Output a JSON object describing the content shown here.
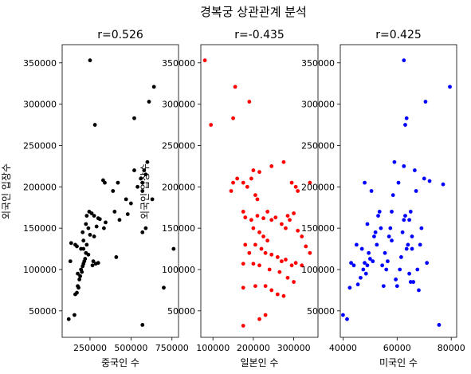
{
  "figure": {
    "suptitle": "경복궁 상관관계 분석"
  },
  "chart_data": [
    {
      "type": "scatter",
      "title": "r=0.526",
      "xlabel": "중국인 수",
      "ylabel": "외국인 입장수",
      "color": "#000000",
      "xlim": [
        80000,
        790000
      ],
      "ylim": [
        18000,
        372000
      ],
      "xticks": [
        250000,
        500000,
        750000
      ],
      "xtick_labels": [
        "250000",
        "500000",
        "750000"
      ],
      "yticks": [
        50000,
        100000,
        150000,
        200000,
        250000,
        300000,
        350000
      ],
      "ytick_labels": [
        "50000",
        "100000",
        "150000",
        "200000",
        "250000",
        "300000",
        "350000"
      ],
      "points": [
        [
          120000,
          40000
        ],
        [
          155000,
          45000
        ],
        [
          170000,
          72000
        ],
        [
          160000,
          70000
        ],
        [
          175000,
          80000
        ],
        [
          180000,
          78000
        ],
        [
          185000,
          88000
        ],
        [
          190000,
          92000
        ],
        [
          175000,
          95000
        ],
        [
          200000,
          97000
        ],
        [
          195000,
          100000
        ],
        [
          205000,
          104000
        ],
        [
          210000,
          107000
        ],
        [
          215000,
          110000
        ],
        [
          220000,
          113000
        ],
        [
          130000,
          110000
        ],
        [
          195000,
          125000
        ],
        [
          210000,
          125000
        ],
        [
          160000,
          130000
        ],
        [
          170000,
          128000
        ],
        [
          135000,
          132000
        ],
        [
          225000,
          120000
        ],
        [
          240000,
          118000
        ],
        [
          265000,
          105000
        ],
        [
          285000,
          107000
        ],
        [
          300000,
          108000
        ],
        [
          270000,
          110000
        ],
        [
          250000,
          142000
        ],
        [
          275000,
          140000
        ],
        [
          240000,
          150000
        ],
        [
          230000,
          130000
        ],
        [
          210000,
          135000
        ],
        [
          205000,
          145000
        ],
        [
          225000,
          155000
        ],
        [
          230000,
          165000
        ],
        [
          245000,
          170000
        ],
        [
          260000,
          168000
        ],
        [
          275000,
          165000
        ],
        [
          300000,
          162000
        ],
        [
          310000,
          161000
        ],
        [
          290000,
          152000
        ],
        [
          335000,
          150000
        ],
        [
          345000,
          157000
        ],
        [
          400000,
          170000
        ],
        [
          430000,
          160000
        ],
        [
          480000,
          167000
        ],
        [
          500000,
          180000
        ],
        [
          470000,
          185000
        ],
        [
          390000,
          195000
        ],
        [
          420000,
          205000
        ],
        [
          340000,
          205000
        ],
        [
          330000,
          208000
        ],
        [
          280000,
          275000
        ],
        [
          250000,
          353000
        ],
        [
          520000,
          220000
        ],
        [
          520000,
          283000
        ],
        [
          540000,
          200000
        ],
        [
          560000,
          210000
        ],
        [
          570000,
          205000
        ],
        [
          570000,
          195000
        ],
        [
          580000,
          220000
        ],
        [
          590000,
          215000
        ],
        [
          600000,
          230000
        ],
        [
          610000,
          303000
        ],
        [
          640000,
          321000
        ],
        [
          630000,
          185000
        ],
        [
          570000,
          145000
        ],
        [
          590000,
          150000
        ],
        [
          410000,
          115000
        ],
        [
          760000,
          125000
        ],
        [
          700000,
          78000
        ],
        [
          570000,
          33000
        ]
      ]
    },
    {
      "type": "scatter",
      "title": "r=-0.435",
      "xlabel": "일본인 수",
      "ylabel": "외국인 입장수",
      "color": "#ff0000",
      "xlim": [
        70000,
        360000
      ],
      "ylim": [
        18000,
        372000
      ],
      "xticks": [
        100000,
        200000,
        300000
      ],
      "xtick_labels": [
        "100000",
        "200000",
        "300000"
      ],
      "yticks": [
        50000,
        100000,
        150000,
        200000,
        250000,
        300000,
        350000
      ],
      "ytick_labels": [
        "50000",
        "100000",
        "150000",
        "200000",
        "250000",
        "300000",
        "350000"
      ],
      "points": [
        [
          80000,
          353000
        ],
        [
          95000,
          275000
        ],
        [
          155000,
          321000
        ],
        [
          150000,
          283000
        ],
        [
          190000,
          303000
        ],
        [
          145000,
          195000
        ],
        [
          150000,
          205000
        ],
        [
          160000,
          210000
        ],
        [
          175000,
          205000
        ],
        [
          185000,
          200000
        ],
        [
          195000,
          210000
        ],
        [
          200000,
          220000
        ],
        [
          215000,
          218000
        ],
        [
          205000,
          190000
        ],
        [
          210000,
          185000
        ],
        [
          245000,
          225000
        ],
        [
          275000,
          230000
        ],
        [
          295000,
          205000
        ],
        [
          305000,
          200000
        ],
        [
          310000,
          195000
        ],
        [
          175000,
          170000
        ],
        [
          180000,
          163000
        ],
        [
          195000,
          160000
        ],
        [
          210000,
          165000
        ],
        [
          225000,
          162000
        ],
        [
          235000,
          170000
        ],
        [
          245000,
          160000
        ],
        [
          255000,
          163000
        ],
        [
          270000,
          155000
        ],
        [
          280000,
          150000
        ],
        [
          285000,
          165000
        ],
        [
          290000,
          160000
        ],
        [
          300000,
          168000
        ],
        [
          310000,
          147000
        ],
        [
          320000,
          140000
        ],
        [
          330000,
          128000
        ],
        [
          340000,
          120000
        ],
        [
          200000,
          150000
        ],
        [
          215000,
          145000
        ],
        [
          225000,
          140000
        ],
        [
          235000,
          135000
        ],
        [
          205000,
          130000
        ],
        [
          180000,
          130000
        ],
        [
          190000,
          120000
        ],
        [
          220000,
          125000
        ],
        [
          230000,
          120000
        ],
        [
          245000,
          118000
        ],
        [
          260000,
          115000
        ],
        [
          270000,
          110000
        ],
        [
          280000,
          112000
        ],
        [
          295000,
          105000
        ],
        [
          305000,
          108000
        ],
        [
          320000,
          105000
        ],
        [
          175000,
          107000
        ],
        [
          200000,
          107000
        ],
        [
          215000,
          105000
        ],
        [
          240000,
          100000
        ],
        [
          265000,
          97000
        ],
        [
          285000,
          90000
        ],
        [
          300000,
          85000
        ],
        [
          175000,
          78000
        ],
        [
          205000,
          80000
        ],
        [
          230000,
          80000
        ],
        [
          245000,
          75000
        ],
        [
          260000,
          70000
        ],
        [
          275000,
          68000
        ],
        [
          215000,
          40000
        ],
        [
          230000,
          45000
        ],
        [
          175000,
          32000
        ],
        [
          340000,
          205000
        ]
      ]
    },
    {
      "type": "scatter",
      "title": "r=0.425",
      "xlabel": "미국인 수",
      "ylabel": "",
      "color": "#0000ff",
      "xlim": [
        39000,
        82000
      ],
      "ylim": [
        18000,
        372000
      ],
      "xticks": [
        40000,
        60000,
        80000
      ],
      "xtick_labels": [
        "40000",
        "60000",
        "80000"
      ],
      "yticks": [
        50000,
        100000,
        150000,
        200000,
        250000,
        300000,
        350000
      ],
      "ytick_labels": [
        "50000",
        "100000",
        "150000",
        "200000",
        "250000",
        "300000",
        "350000"
      ],
      "points": [
        [
          40000,
          45000
        ],
        [
          41500,
          40000
        ],
        [
          42500,
          78000
        ],
        [
          43000,
          108000
        ],
        [
          44000,
          105000
        ],
        [
          45000,
          130000
        ],
        [
          45500,
          82000
        ],
        [
          46500,
          90000
        ],
        [
          47500,
          100000
        ],
        [
          48000,
          108000
        ],
        [
          48500,
          95000
        ],
        [
          49000,
          105000
        ],
        [
          47000,
          125000
        ],
        [
          49500,
          120000
        ],
        [
          50000,
          113000
        ],
        [
          51000,
          110000
        ],
        [
          51500,
          140000
        ],
        [
          52000,
          145000
        ],
        [
          52500,
          130000
        ],
        [
          49000,
          155000
        ],
        [
          48000,
          205000
        ],
        [
          50500,
          195000
        ],
        [
          53000,
          165000
        ],
        [
          53500,
          170000
        ],
        [
          54000,
          150000
        ],
        [
          54500,
          105000
        ],
        [
          55000,
          80000
        ],
        [
          55500,
          120000
        ],
        [
          56000,
          100000
        ],
        [
          56500,
          110000
        ],
        [
          57000,
          140000
        ],
        [
          57500,
          150000
        ],
        [
          58000,
          170000
        ],
        [
          58500,
          190000
        ],
        [
          59000,
          230000
        ],
        [
          58000,
          135000
        ],
        [
          59500,
          88000
        ],
        [
          60000,
          80000
        ],
        [
          61000,
          100000
        ],
        [
          61500,
          115000
        ],
        [
          62000,
          145000
        ],
        [
          62500,
          160000
        ],
        [
          63000,
          165000
        ],
        [
          63500,
          125000
        ],
        [
          64000,
          130000
        ],
        [
          64500,
          160000
        ],
        [
          65000,
          170000
        ],
        [
          65500,
          140000
        ],
        [
          60500,
          205000
        ],
        [
          62500,
          225000
        ],
        [
          63000,
          275000
        ],
        [
          63500,
          283000
        ],
        [
          62500,
          353000
        ],
        [
          64500,
          95000
        ],
        [
          65000,
          85000
        ],
        [
          66000,
          85000
        ],
        [
          66500,
          220000
        ],
        [
          67000,
          195000
        ],
        [
          67500,
          100000
        ],
        [
          68000,
          75000
        ],
        [
          68500,
          130000
        ],
        [
          69000,
          150000
        ],
        [
          70000,
          210000
        ],
        [
          70500,
          303000
        ],
        [
          71000,
          108000
        ],
        [
          72000,
          207000
        ],
        [
          75500,
          33000
        ],
        [
          77000,
          203000
        ],
        [
          79500,
          321000
        ],
        [
          65500,
          125000
        ]
      ]
    }
  ]
}
